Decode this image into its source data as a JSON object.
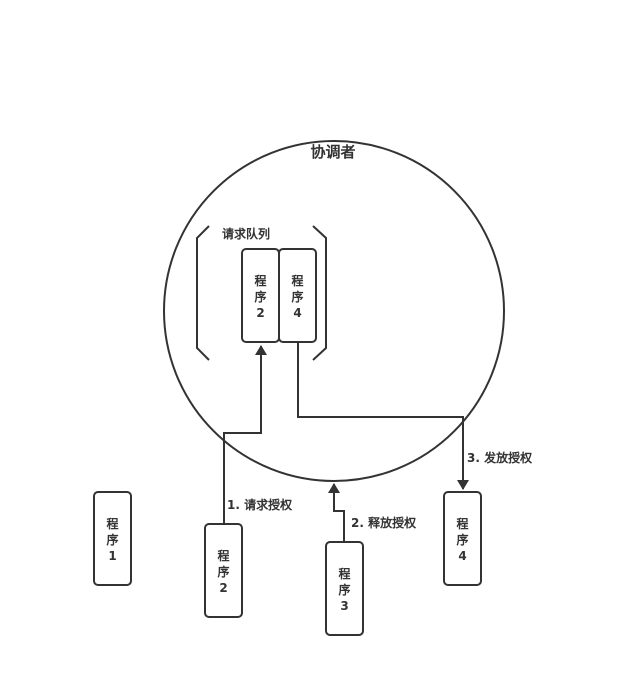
{
  "diagram": {
    "coordinator_label": "协调者",
    "queue_label": "请求队列",
    "queue_programs": [
      {
        "lines": [
          "程",
          "序",
          "2"
        ]
      },
      {
        "lines": [
          "程",
          "序",
          "4"
        ]
      }
    ],
    "outside_programs": [
      {
        "lines": [
          "程",
          "序",
          "1"
        ]
      },
      {
        "lines": [
          "程",
          "序",
          "2"
        ]
      },
      {
        "lines": [
          "程",
          "序",
          "3"
        ]
      },
      {
        "lines": [
          "程",
          "序",
          "4"
        ]
      }
    ],
    "steps": {
      "request": "1. 请求授权",
      "release": "2. 释放授权",
      "grant": "3. 发放授权"
    },
    "colors": {
      "stroke": "#333333",
      "background": "#ffffff"
    }
  }
}
